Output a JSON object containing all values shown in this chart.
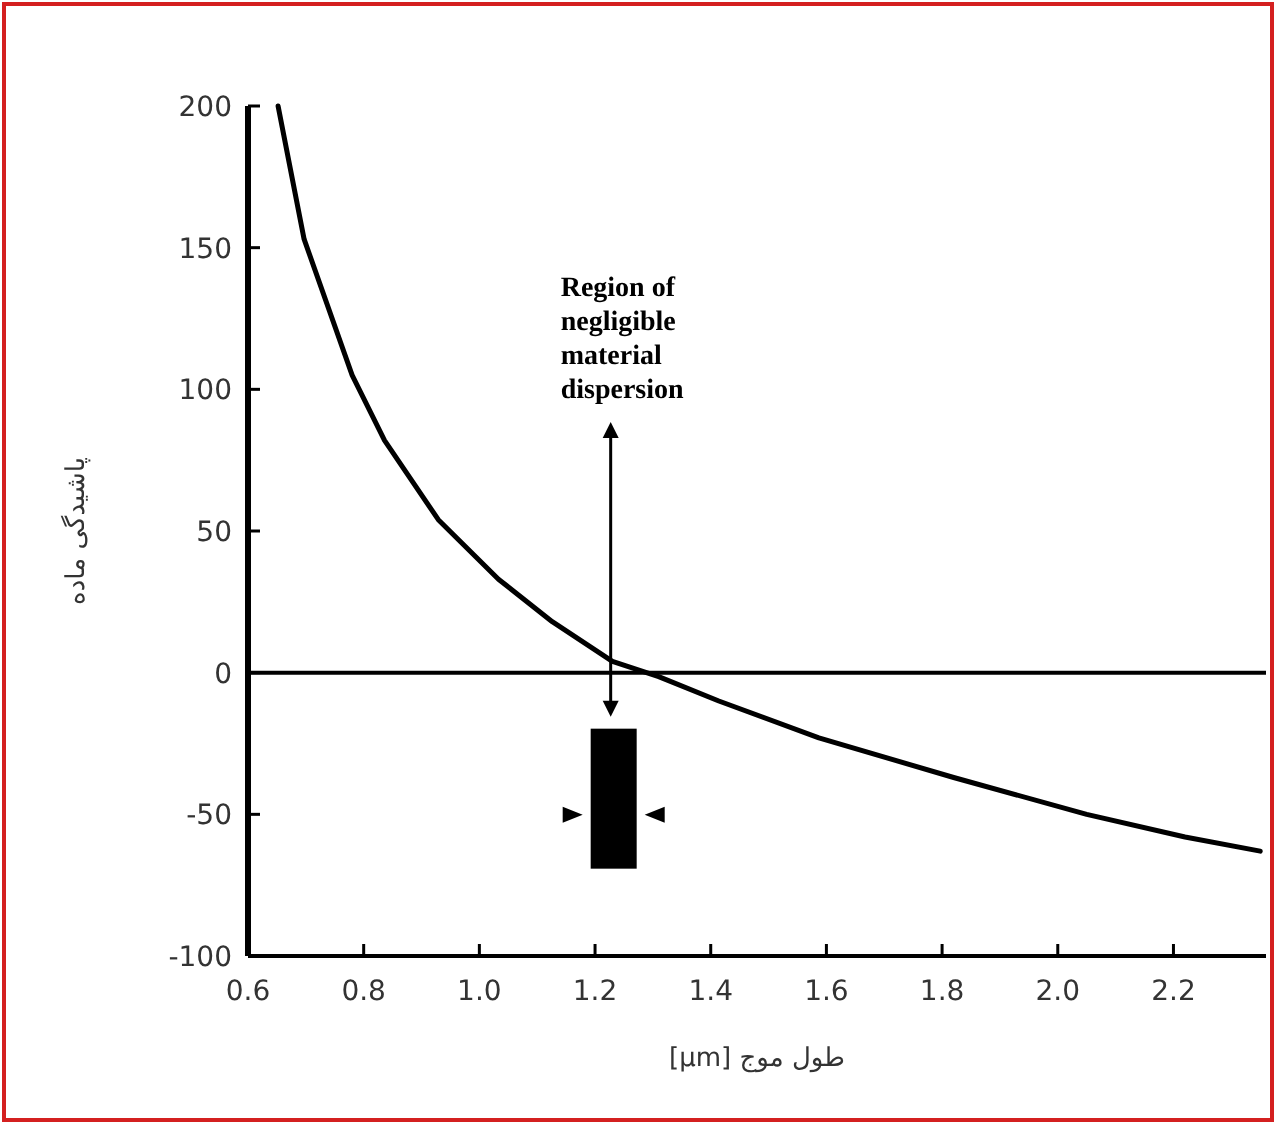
{
  "chart_data": {
    "type": "line",
    "xlabel": "طول موج [μm]",
    "ylabel": "پاشیدگی ماده",
    "x": [
      0.652,
      0.697,
      0.78,
      0.836,
      0.929,
      1.033,
      1.126,
      1.23,
      1.31,
      1.414,
      1.587,
      1.82,
      2.05,
      2.22,
      2.35
    ],
    "series": [
      {
        "color": "#000000",
        "values": [
          200,
          153,
          105,
          82,
          54,
          33,
          18,
          4,
          -1.4,
          -10,
          -23,
          -37,
          -50,
          -58,
          -63
        ]
      }
    ],
    "xlim": [
      0.6,
      2.36
    ],
    "xticks": [
      0.6,
      0.8,
      {
        "value": 1,
        "label": "1.0"
      },
      1.2,
      1.4,
      1.6,
      1.8,
      {
        "value": 2,
        "label": "2.0"
      },
      2.2
    ],
    "ylim": [
      -100,
      200
    ],
    "yticks": [
      -100,
      -50,
      0,
      50,
      100,
      150,
      200
    ],
    "ref_lines": [
      {
        "axis": "y",
        "value": 0,
        "color": "#000000"
      }
    ],
    "annotations": [
      "Region of negligible material dispersion"
    ],
    "marker": "none",
    "line_style": "solid"
  }
}
